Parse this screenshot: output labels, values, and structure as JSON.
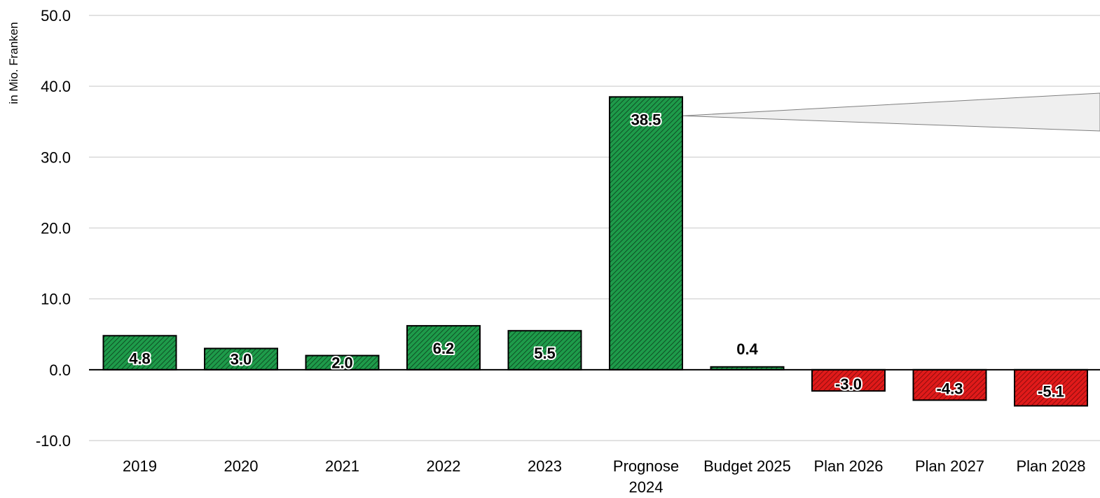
{
  "chart_data": {
    "type": "bar",
    "title": "",
    "xlabel": "",
    "ylabel": "in Mio. Franken",
    "ylim": [
      -10,
      50
    ],
    "yticks": [
      -10,
      0,
      10,
      20,
      30,
      40,
      50
    ],
    "ytick_labels": [
      "-10.0",
      "0.0",
      "10.0",
      "20.0",
      "30.0",
      "40.0",
      "50.0"
    ],
    "grid": true,
    "categories": [
      [
        "2019"
      ],
      [
        "2020"
      ],
      [
        "2021"
      ],
      [
        "2022"
      ],
      [
        "2023"
      ],
      [
        "Prognose",
        "2024"
      ],
      [
        "Budget 2025"
      ],
      [
        "Plan 2026"
      ],
      [
        "Plan 2027"
      ],
      [
        "Plan 2028"
      ]
    ],
    "values": [
      4.8,
      3.0,
      2.0,
      6.2,
      5.5,
      38.5,
      0.4,
      -3.0,
      -4.3,
      -5.1
    ],
    "value_labels": [
      "4.8",
      "3.0",
      "2.0",
      "6.2",
      "5.5",
      "38.5",
      "0.4",
      "-3.0",
      "-4.3",
      "-5.1"
    ],
    "colors": {
      "positive": "#1e9b4a",
      "negative": "#e01a1a",
      "hatch": "#0b3d1c",
      "grid": "#d9d9d9",
      "callout": "#efefef"
    }
  }
}
